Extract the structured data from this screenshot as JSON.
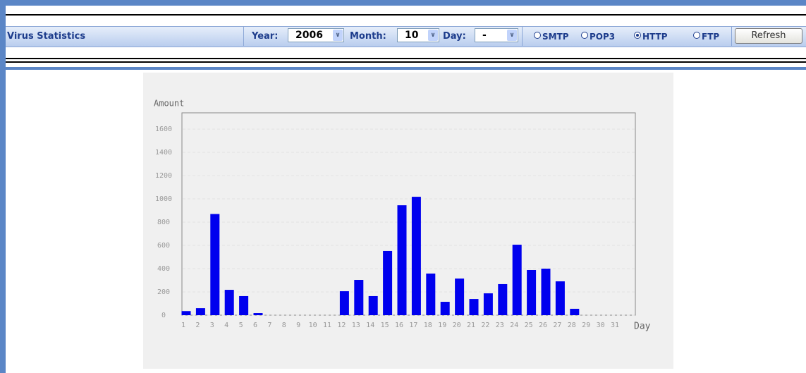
{
  "toolbar": {
    "title": "Virus Statistics",
    "year_label": "Year:",
    "year": "2006",
    "month_label": "Month:",
    "month": "10",
    "day_label": "Day:",
    "day": "-",
    "protocols": [
      {
        "label": "SMTP",
        "checked": false
      },
      {
        "label": "POP3",
        "checked": false
      },
      {
        "label": "HTTP",
        "checked": true
      },
      {
        "label": "FTP",
        "checked": false
      }
    ],
    "button": "Refresh"
  },
  "chart_data": {
    "type": "bar",
    "y_label": "Amount",
    "x_label": "Day",
    "categories": [
      "1",
      "2",
      "3",
      "4",
      "5",
      "6",
      "7",
      "8",
      "9",
      "10",
      "11",
      "12",
      "13",
      "14",
      "15",
      "16",
      "17",
      "18",
      "19",
      "20",
      "21",
      "22",
      "23",
      "24",
      "25",
      "26",
      "27",
      "28",
      "29",
      "30",
      "31"
    ],
    "values": [
      35,
      60,
      870,
      218,
      164,
      18,
      0,
      0,
      0,
      0,
      0,
      206,
      303,
      164,
      552,
      945,
      1018,
      358,
      115,
      315,
      139,
      188,
      267,
      606,
      388,
      400,
      291,
      55,
      0,
      0,
      0
    ],
    "color": "#0000ee",
    "ylim": [
      0,
      1740
    ],
    "yticks": [
      0,
      200,
      400,
      600,
      800,
      1000,
      1200,
      1400,
      1600
    ],
    "grid": true
  }
}
